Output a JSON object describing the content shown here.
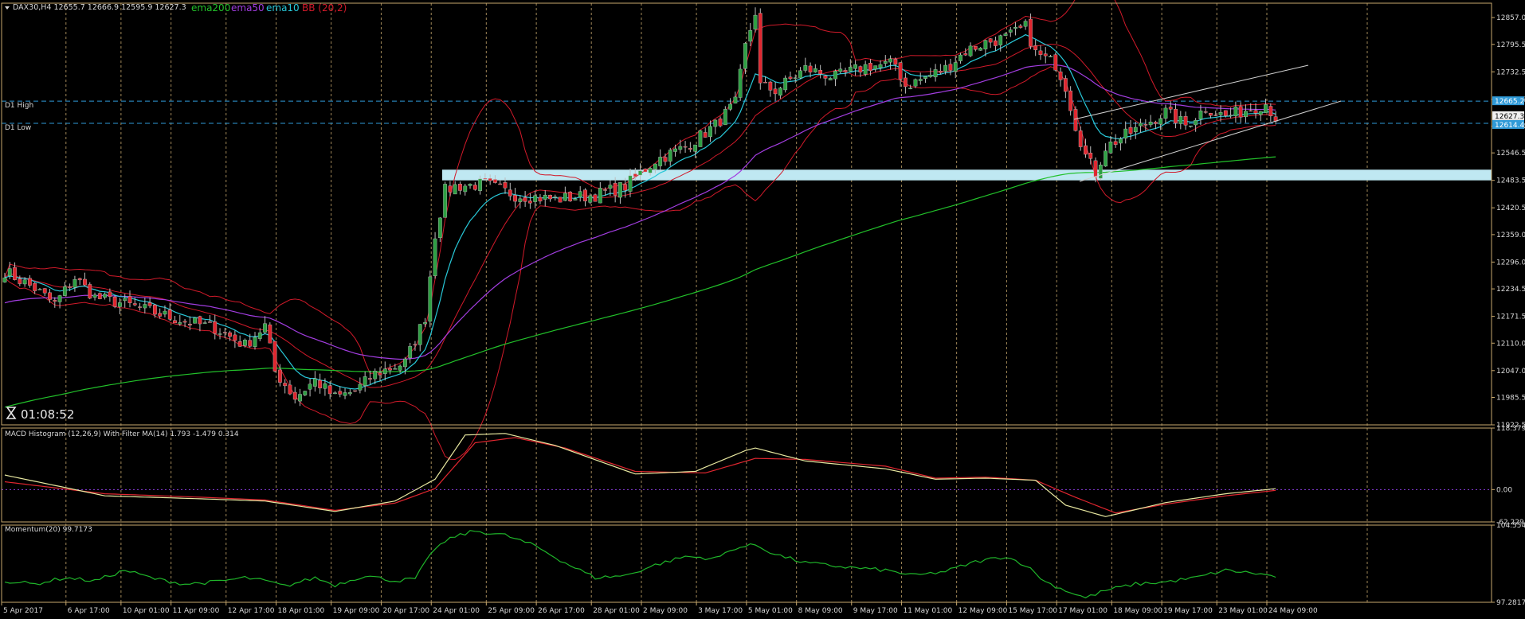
{
  "colors": {
    "background": "#000000",
    "frame": "#c8a96e",
    "grid": "#c8a96e",
    "bull": "#2ea043",
    "bear": "#e0262f",
    "ema200": "#22c12a",
    "ema50": "#a23de0",
    "ema10": "#28c8d8",
    "bb": "#d11a2a",
    "macd_main": "#e8e8a0",
    "macd_signal": "#e0262f",
    "momentum": "#1fb62a",
    "zone": "#bfe8f2",
    "dline": "#2f9ad8",
    "channel": "#d0d0d0",
    "text": "#d8d8d8",
    "price_tag": "#2f9ad8"
  },
  "header": {
    "symbol_info": "DAX30,H4  12655.7 12666.9 12595.9 12627.3",
    "legend": [
      {
        "label": "ema200",
        "color": "#22c12a"
      },
      {
        "label": "ema50",
        "color": "#a23de0"
      },
      {
        "label": "ema10",
        "color": "#28c8d8"
      },
      {
        "label": "BB (20,2)",
        "color": "#d11a2a"
      }
    ]
  },
  "countdown": "01:08:52",
  "chart_data": [
    {
      "type": "candlestick",
      "id": "price",
      "ylim": [
        11922.5,
        12890
      ],
      "y_ticks": [
        "12857.0",
        "12795.5",
        "12732.5",
        "12669.5",
        "12608.0",
        "12546.5",
        "12483.5",
        "12420.5",
        "12359.0",
        "12296.0",
        "12234.5",
        "12171.5",
        "12110.0",
        "12047.0",
        "11985.5",
        "11922.5"
      ],
      "x_ticks": [
        "5 Apr 2017",
        "6 Apr 17:00",
        "10 Apr 01:00",
        "11 Apr 09:00",
        "12 Apr 17:00",
        "18 Apr 01:00",
        "19 Apr 09:00",
        "20 Apr 17:00",
        "24 Apr 01:00",
        "25 Apr 09:00",
        "26 Apr 17:00",
        "28 Apr 01:00",
        "2 May 09:00",
        "3 May 17:00",
        "5 May 01:00",
        "8 May 09:00",
        "9 May 17:00",
        "11 May 01:00",
        "12 May 09:00",
        "15 May 17:00",
        "17 May 01:00",
        "18 May 09:00",
        "19 May 17:00",
        "23 May 01:00",
        "24 May 09:00"
      ],
      "price_labels": [
        {
          "label": "D1 High",
          "value": 12665.2
        },
        {
          "label": "D1 Low",
          "value": 12614.4
        }
      ],
      "price_tags": [
        "12665.2",
        "12627.3",
        "12614.4"
      ],
      "support_zone": [
        12483.5,
        12508
      ],
      "anchors": [
        [
          0,
          12275
        ],
        [
          6,
          12235
        ],
        [
          10,
          12200
        ],
        [
          14,
          12260
        ],
        [
          18,
          12215
        ],
        [
          24,
          12200
        ],
        [
          30,
          12180
        ],
        [
          36,
          12160
        ],
        [
          42,
          12145
        ],
        [
          48,
          12105
        ],
        [
          52,
          12150
        ],
        [
          54,
          12045
        ],
        [
          58,
          11985
        ],
        [
          62,
          12025
        ],
        [
          66,
          11985
        ],
        [
          70,
          12000
        ],
        [
          74,
          12040
        ],
        [
          80,
          12065
        ],
        [
          84,
          12170
        ],
        [
          86,
          12360
        ],
        [
          88,
          12460
        ],
        [
          90,
          12470
        ],
        [
          96,
          12475
        ],
        [
          102,
          12450
        ],
        [
          110,
          12440
        ],
        [
          118,
          12450
        ],
        [
          124,
          12470
        ],
        [
          130,
          12530
        ],
        [
          136,
          12560
        ],
        [
          142,
          12610
        ],
        [
          146,
          12660
        ],
        [
          148,
          12790
        ],
        [
          150,
          12870
        ],
        [
          151,
          12700
        ],
        [
          154,
          12690
        ],
        [
          160,
          12740
        ],
        [
          166,
          12720
        ],
        [
          172,
          12745
        ],
        [
          178,
          12750
        ],
        [
          180,
          12700
        ],
        [
          184,
          12720
        ],
        [
          188,
          12740
        ],
        [
          192,
          12780
        ],
        [
          196,
          12800
        ],
        [
          200,
          12810
        ],
        [
          204,
          12835
        ],
        [
          206,
          12775
        ],
        [
          210,
          12750
        ],
        [
          212,
          12700
        ],
        [
          214,
          12610
        ],
        [
          216,
          12540
        ],
        [
          218,
          12500
        ],
        [
          220,
          12560
        ],
        [
          226,
          12600
        ],
        [
          232,
          12640
        ],
        [
          236,
          12610
        ],
        [
          240,
          12650
        ],
        [
          244,
          12630
        ],
        [
          248,
          12645
        ],
        [
          252,
          12660
        ],
        [
          254,
          12627
        ]
      ]
    },
    {
      "type": "line",
      "id": "macd",
      "title": "MACD Histogram (12,26,9) With Filter MA(14) 1.793 -1.479 0.314",
      "ylim": [
        -62.229,
        118.379
      ],
      "y_ticks": [
        "118.379",
        "0.00",
        "-62.229"
      ],
      "main_anchors": [
        [
          0,
          28
        ],
        [
          20,
          -12
        ],
        [
          40,
          -18
        ],
        [
          52,
          -22
        ],
        [
          66,
          -42
        ],
        [
          78,
          -22
        ],
        [
          86,
          20
        ],
        [
          92,
          105
        ],
        [
          100,
          108
        ],
        [
          110,
          85
        ],
        [
          126,
          30
        ],
        [
          138,
          35
        ],
        [
          148,
          75
        ],
        [
          150,
          80
        ],
        [
          160,
          55
        ],
        [
          176,
          40
        ],
        [
          186,
          20
        ],
        [
          196,
          22
        ],
        [
          206,
          18
        ],
        [
          212,
          -30
        ],
        [
          220,
          -52
        ],
        [
          232,
          -25
        ],
        [
          244,
          -8
        ],
        [
          254,
          1.793
        ]
      ],
      "signal_anchors": [
        [
          0,
          15
        ],
        [
          20,
          -8
        ],
        [
          40,
          -15
        ],
        [
          52,
          -20
        ],
        [
          66,
          -40
        ],
        [
          78,
          -26
        ],
        [
          86,
          2
        ],
        [
          94,
          90
        ],
        [
          102,
          100
        ],
        [
          112,
          80
        ],
        [
          126,
          35
        ],
        [
          140,
          32
        ],
        [
          150,
          60
        ],
        [
          160,
          58
        ],
        [
          176,
          45
        ],
        [
          186,
          22
        ],
        [
          196,
          24
        ],
        [
          206,
          18
        ],
        [
          214,
          -15
        ],
        [
          222,
          -45
        ],
        [
          232,
          -28
        ],
        [
          244,
          -12
        ],
        [
          254,
          -1.479
        ]
      ]
    },
    {
      "type": "line",
      "id": "momentum",
      "title": "Momentum(20) 99.7173",
      "ylim": [
        97.2817,
        104.5544
      ],
      "y_ticks": [
        "104.5544",
        "97.2817"
      ],
      "anchors": [
        [
          0,
          99.3
        ],
        [
          6,
          99.0
        ],
        [
          12,
          99.6
        ],
        [
          18,
          99.3
        ],
        [
          24,
          100.3
        ],
        [
          30,
          99.5
        ],
        [
          36,
          99.0
        ],
        [
          42,
          99.2
        ],
        [
          48,
          99.6
        ],
        [
          52,
          99.3
        ],
        [
          56,
          98.8
        ],
        [
          62,
          99.6
        ],
        [
          66,
          98.9
        ],
        [
          72,
          99.8
        ],
        [
          78,
          99.3
        ],
        [
          82,
          99.5
        ],
        [
          86,
          102.4
        ],
        [
          90,
          103.5
        ],
        [
          94,
          104.0
        ],
        [
          100,
          103.6
        ],
        [
          106,
          102.6
        ],
        [
          112,
          101.0
        ],
        [
          118,
          99.6
        ],
        [
          124,
          99.8
        ],
        [
          130,
          100.8
        ],
        [
          136,
          101.6
        ],
        [
          142,
          101.4
        ],
        [
          146,
          102.4
        ],
        [
          150,
          102.7
        ],
        [
          154,
          101.8
        ],
        [
          160,
          101.0
        ],
        [
          168,
          100.6
        ],
        [
          176,
          100.3
        ],
        [
          182,
          99.8
        ],
        [
          188,
          100.2
        ],
        [
          194,
          101.1
        ],
        [
          200,
          101.6
        ],
        [
          204,
          100.8
        ],
        [
          208,
          99.2
        ],
        [
          212,
          98.4
        ],
        [
          216,
          97.7
        ],
        [
          220,
          98.4
        ],
        [
          226,
          99.0
        ],
        [
          232,
          99.2
        ],
        [
          238,
          99.6
        ],
        [
          244,
          100.3
        ],
        [
          250,
          100.0
        ],
        [
          254,
          99.7173
        ]
      ]
    }
  ]
}
